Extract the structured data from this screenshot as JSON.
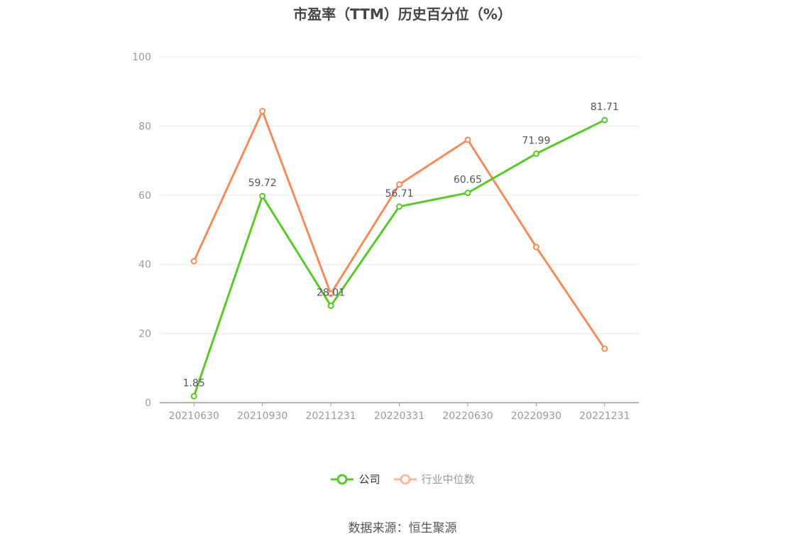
{
  "chart_data": {
    "type": "line",
    "title": "市盈率（TTM）历史百分位（%）",
    "categories": [
      "20210630",
      "20210930",
      "20211231",
      "20220331",
      "20220630",
      "20220930",
      "20221231"
    ],
    "ylim": [
      0,
      100
    ],
    "yticks": [
      "0",
      "20",
      "40",
      "60",
      "80",
      "100"
    ],
    "series": [
      {
        "name": "公司",
        "color": "#5ac72b",
        "values": [
          1.85,
          59.72,
          28.01,
          56.71,
          60.65,
          71.99,
          81.71
        ],
        "labels": [
          "1.85",
          "59.72",
          "28.01",
          "56.71",
          "60.65",
          "71.99",
          "81.71"
        ]
      },
      {
        "name": "行业中位数",
        "color": "#f28c5a",
        "values": [
          40.9,
          84.3,
          31.5,
          63.1,
          76.0,
          45.0,
          15.6
        ]
      }
    ],
    "grid": true,
    "legend": "bottom"
  },
  "source_text": "数据来源：恒生聚源"
}
